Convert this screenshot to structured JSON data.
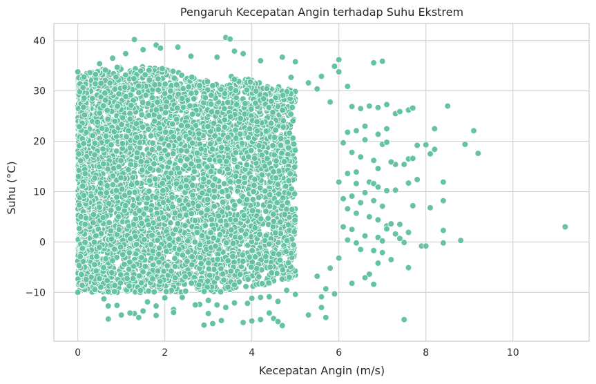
{
  "chart_data": {
    "type": "scatter",
    "title": "Pengaruh Kecepatan Angin terhadap Suhu Ekstrem",
    "xlabel": "Kecepatan Angin (m/s)",
    "ylabel": "Suhu (°C)",
    "xlim": [
      -0.55,
      11.75
    ],
    "ylim": [
      -19.7,
      43.4
    ],
    "xticks": [
      0,
      2,
      4,
      6,
      8,
      10
    ],
    "yticks": [
      -10,
      0,
      10,
      20,
      30,
      40
    ],
    "ytick_labels": [
      "−10",
      "0",
      "10",
      "20",
      "30",
      "40"
    ],
    "grid": true,
    "marker_color": "#66c2a5",
    "marker_edge_color": "#ffffff",
    "density_model": {
      "x_range": [
        0,
        5.0
      ],
      "y_range": [
        -10,
        33
      ],
      "seed": 7
    },
    "points": [
      [
        1.3,
        40.2
      ],
      [
        3.4,
        40.6
      ],
      [
        3.5,
        40.3
      ],
      [
        1.8,
        39.1
      ],
      [
        1.9,
        38.5
      ],
      [
        2.3,
        38.7
      ],
      [
        1.5,
        38.2
      ],
      [
        3.6,
        37.9
      ],
      [
        3.8,
        37.4
      ],
      [
        1.1,
        37.4
      ],
      [
        0.8,
        36.5
      ],
      [
        2.6,
        36.9
      ],
      [
        3.2,
        36.7
      ],
      [
        4.2,
        36.0
      ],
      [
        4.7,
        36.7
      ],
      [
        5.0,
        35.8
      ],
      [
        6.0,
        36.2
      ],
      [
        6.8,
        35.6
      ],
      [
        7.0,
        35.9
      ],
      [
        5.9,
        34.9
      ],
      [
        6.0,
        33.8
      ],
      [
        5.6,
        32.9
      ],
      [
        0.0,
        33.8
      ],
      [
        0.5,
        35.4
      ],
      [
        5.3,
        31.6
      ],
      [
        5.5,
        30.4
      ],
      [
        6.2,
        30.9
      ],
      [
        4.9,
        32.7
      ],
      [
        5.8,
        27.8
      ],
      [
        6.3,
        26.9
      ],
      [
        6.5,
        26.5
      ],
      [
        6.7,
        27.0
      ],
      [
        6.9,
        26.7
      ],
      [
        7.1,
        27.3
      ],
      [
        7.3,
        25.5
      ],
      [
        7.4,
        25.9
      ],
      [
        7.6,
        26.2
      ],
      [
        7.7,
        26.6
      ],
      [
        8.5,
        27.0
      ],
      [
        9.1,
        22.1
      ],
      [
        8.2,
        22.5
      ],
      [
        7.1,
        22.5
      ],
      [
        6.6,
        23.0
      ],
      [
        6.4,
        22.1
      ],
      [
        6.2,
        21.8
      ],
      [
        6.9,
        21.4
      ],
      [
        7.0,
        19.4
      ],
      [
        7.1,
        19.8
      ],
      [
        7.8,
        19.2
      ],
      [
        8.0,
        19.3
      ],
      [
        8.1,
        17.5
      ],
      [
        8.2,
        18.4
      ],
      [
        8.9,
        19.4
      ],
      [
        9.2,
        17.6
      ],
      [
        6.6,
        20.3
      ],
      [
        6.1,
        19.7
      ],
      [
        6.3,
        17.8
      ],
      [
        6.5,
        16.9
      ],
      [
        6.8,
        16.2
      ],
      [
        7.3,
        15.4
      ],
      [
        7.6,
        16.5
      ],
      [
        7.7,
        16.6
      ],
      [
        7.5,
        15.4
      ],
      [
        7.2,
        15.9
      ],
      [
        6.9,
        14.6
      ],
      [
        6.4,
        13.9
      ],
      [
        6.2,
        13.6
      ],
      [
        6.0,
        11.9
      ],
      [
        6.4,
        11.6
      ],
      [
        6.7,
        11.9
      ],
      [
        6.8,
        11.6
      ],
      [
        6.9,
        10.9
      ],
      [
        7.3,
        10.3
      ],
      [
        7.6,
        11.7
      ],
      [
        7.8,
        12.4
      ],
      [
        8.4,
        11.9
      ],
      [
        7.1,
        10.2
      ],
      [
        6.6,
        9.8
      ],
      [
        6.3,
        9.1
      ],
      [
        6.1,
        8.6
      ],
      [
        6.5,
        7.8
      ],
      [
        6.8,
        8.2
      ],
      [
        7.0,
        7.1
      ],
      [
        7.7,
        7.2
      ],
      [
        8.1,
        6.8
      ],
      [
        8.4,
        8.2
      ],
      [
        6.2,
        6.6
      ],
      [
        6.4,
        5.7
      ],
      [
        6.7,
        5.0
      ],
      [
        6.9,
        4.4
      ],
      [
        7.1,
        3.2
      ],
      [
        7.2,
        3.6
      ],
      [
        7.4,
        3.5
      ],
      [
        7.1,
        2.6
      ],
      [
        7.6,
        1.9
      ],
      [
        7.3,
        1.6
      ],
      [
        8.4,
        2.3
      ],
      [
        11.2,
        3.0
      ],
      [
        6.1,
        3.0
      ],
      [
        6.3,
        2.5
      ],
      [
        6.6,
        1.2
      ],
      [
        6.9,
        0.9
      ],
      [
        7.0,
        0.2
      ],
      [
        7.4,
        0.7
      ],
      [
        7.5,
        -0.1
      ],
      [
        7.9,
        -0.8
      ],
      [
        8.0,
        -0.8
      ],
      [
        8.4,
        -0.2
      ],
      [
        8.8,
        0.3
      ],
      [
        6.2,
        0.4
      ],
      [
        6.4,
        -0.2
      ],
      [
        6.5,
        -1.5
      ],
      [
        6.8,
        -1.7
      ],
      [
        7.0,
        -2.1
      ],
      [
        7.2,
        -3.5
      ],
      [
        6.9,
        -4.2
      ],
      [
        6.7,
        -6.4
      ],
      [
        6.6,
        -7.1
      ],
      [
        6.8,
        -8.4
      ],
      [
        6.3,
        -8.2
      ],
      [
        7.6,
        -5.1
      ],
      [
        6.0,
        -3.2
      ],
      [
        5.8,
        -5.2
      ],
      [
        5.5,
        -6.8
      ],
      [
        5.7,
        -9.3
      ],
      [
        5.6,
        -10.9
      ],
      [
        5.9,
        -10.3
      ],
      [
        5.0,
        -10.4
      ],
      [
        4.8,
        -9.6
      ],
      [
        4.4,
        -10.9
      ],
      [
        4.6,
        -11.8
      ],
      [
        4.2,
        -11.0
      ],
      [
        4.0,
        -11.2
      ],
      [
        3.9,
        -12.2
      ],
      [
        3.6,
        -12.1
      ],
      [
        3.4,
        -13.0
      ],
      [
        3.2,
        -12.5
      ],
      [
        3.0,
        -11.6
      ],
      [
        2.8,
        -12.4
      ],
      [
        2.7,
        -12.5
      ],
      [
        2.4,
        -11.0
      ],
      [
        2.2,
        -13.4
      ],
      [
        2.0,
        -11.1
      ],
      [
        1.8,
        -12.7
      ],
      [
        1.6,
        -11.9
      ],
      [
        1.5,
        -13.7
      ],
      [
        1.3,
        -14.2
      ],
      [
        1.2,
        -14.1
      ],
      [
        1.0,
        -14.4
      ],
      [
        0.9,
        -12.6
      ],
      [
        0.7,
        -12.7
      ],
      [
        0.6,
        -11.3
      ],
      [
        1.4,
        -15.0
      ],
      [
        1.8,
        -14.6
      ],
      [
        2.2,
        -14.0
      ],
      [
        3.0,
        -14.2
      ],
      [
        3.1,
        -16.2
      ],
      [
        2.9,
        -16.5
      ],
      [
        3.3,
        -15.6
      ],
      [
        3.8,
        -16.0
      ],
      [
        4.0,
        -15.7
      ],
      [
        4.2,
        -15.4
      ],
      [
        4.5,
        -15.2
      ],
      [
        4.7,
        -16.6
      ],
      [
        4.6,
        -15.8
      ],
      [
        0.7,
        -15.3
      ],
      [
        1.0,
        -14.5
      ],
      [
        5.3,
        -14.5
      ],
      [
        5.7,
        -15.0
      ],
      [
        7.5,
        -15.4
      ],
      [
        0.0,
        -10.0
      ],
      [
        0.1,
        -8.6
      ],
      [
        5.6,
        -13.0
      ],
      [
        4.4,
        -14.1
      ]
    ]
  }
}
